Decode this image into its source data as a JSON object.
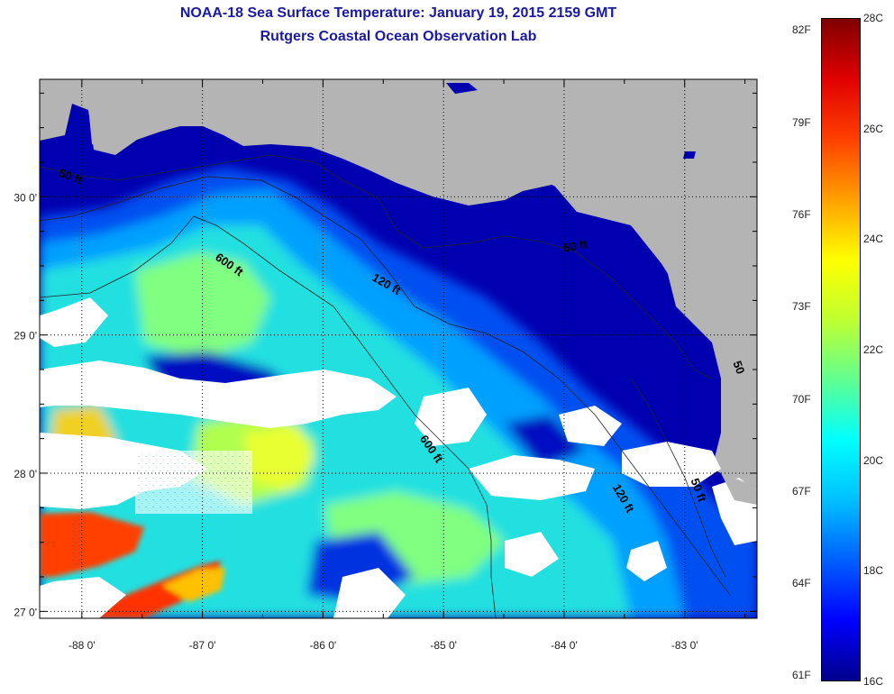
{
  "title_line1": "NOAA-18 Sea Surface Temperature:  January 19, 2015 2159 GMT",
  "title_line2": "Rutgers Coastal Ocean Observation Lab",
  "map": {
    "lon_range": [
      -88.35,
      -82.4
    ],
    "lat_range": [
      26.95,
      30.85
    ],
    "x_ticks": [
      -88,
      -87,
      -86,
      -85,
      -84,
      -83
    ],
    "x_tick_labels": [
      "-88 0'",
      "-87 0'",
      "-86 0'",
      "-85 0'",
      "-84 0'",
      "-83 0'"
    ],
    "y_ticks": [
      27,
      28,
      29,
      30
    ],
    "y_tick_labels": [
      "27 0'",
      "28 0'",
      "29 0'",
      "30 0'"
    ],
    "contour_labels": [
      {
        "text": "50 ft",
        "lon": -88.2,
        "lat": 30.15,
        "angle": 20
      },
      {
        "text": "600 ft",
        "lon": -86.9,
        "lat": 29.55,
        "angle": 35
      },
      {
        "text": "120 ft",
        "lon": -85.6,
        "lat": 29.4,
        "angle": 30
      },
      {
        "text": "50 ft",
        "lon": -84.0,
        "lat": 29.6,
        "angle": -10
      },
      {
        "text": "600 ft",
        "lon": -85.2,
        "lat": 28.25,
        "angle": 55
      },
      {
        "text": "120 ft",
        "lon": -83.6,
        "lat": 27.9,
        "angle": 60
      },
      {
        "text": "50 ft",
        "lon": -82.95,
        "lat": 27.95,
        "angle": 70
      },
      {
        "text": "50",
        "lon": -82.6,
        "lat": 28.8,
        "angle": 70
      }
    ]
  },
  "colorbar": {
    "colors": [
      "#00008c",
      "#0000ff",
      "#0060ff",
      "#00c0ff",
      "#00ffff",
      "#60ff90",
      "#c0ff30",
      "#ffff00",
      "#ffa000",
      "#ff4000",
      "#e00000",
      "#800000"
    ],
    "fahrenheit": [
      {
        "label": "82F",
        "value_c": 27.78
      },
      {
        "label": "79F",
        "value_c": 26.11
      },
      {
        "label": "76F",
        "value_c": 24.44
      },
      {
        "label": "73F",
        "value_c": 22.78
      },
      {
        "label": "70F",
        "value_c": 21.11
      },
      {
        "label": "67F",
        "value_c": 19.44
      },
      {
        "label": "64F",
        "value_c": 17.78
      },
      {
        "label": "61F",
        "value_c": 16.11
      }
    ],
    "celsius": [
      {
        "label": "28C",
        "value_c": 28
      },
      {
        "label": "26C",
        "value_c": 26
      },
      {
        "label": "24C",
        "value_c": 24
      },
      {
        "label": "22C",
        "value_c": 22
      },
      {
        "label": "20C",
        "value_c": 20
      },
      {
        "label": "18C",
        "value_c": 18
      },
      {
        "label": "16C",
        "value_c": 16
      }
    ],
    "min_c": 16,
    "max_c": 28
  }
}
